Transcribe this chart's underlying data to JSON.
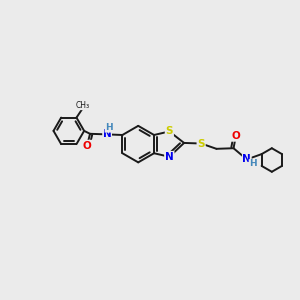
{
  "background_color": "#ebebeb",
  "bond_color": "#1a1a1a",
  "bond_width": 1.4,
  "atom_colors": {
    "S": "#cccc00",
    "N": "#0000ee",
    "O": "#ee0000",
    "C": "#1a1a1a",
    "H": "#4488bb"
  },
  "font_size": 7.0,
  "fig_width": 3.0,
  "fig_height": 3.0,
  "xlim": [
    0,
    10
  ],
  "ylim": [
    0,
    10
  ]
}
